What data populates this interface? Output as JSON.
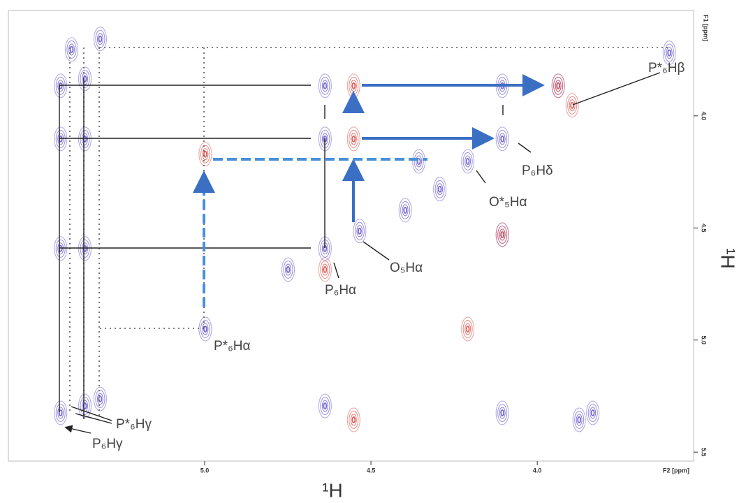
{
  "chart_data": {
    "type": "contour",
    "x_label": "¹H",
    "y_label": "¹H",
    "x_unit": "F2 [ppm]",
    "y_unit": "F1 [ppm]",
    "xlim": [
      5.59,
      3.53
    ],
    "ylim": [
      3.53,
      5.54
    ],
    "xticks": [
      {
        "value": 5,
        "label": "5.0"
      },
      {
        "value": 4.5,
        "label": "4.5"
      },
      {
        "value": 4,
        "label": "4.0"
      }
    ],
    "yticks": [
      {
        "value": 4,
        "label": "4.0"
      },
      {
        "value": 4.5,
        "label": "4.5"
      },
      {
        "value": 5,
        "label": "5.0"
      },
      {
        "value": 5.5,
        "label": "5.5"
      }
    ],
    "series": [
      {
        "color": "#6a5acd",
        "x": [
          5.433,
          5.433,
          5.433,
          5.433,
          5.36,
          5.36,
          5.36,
          5.36,
          5.314,
          5.314,
          5.4,
          4.998,
          4.749,
          4.638,
          4.638,
          4.638,
          4.638,
          4.534,
          4.105,
          4.105,
          4.105,
          3.937,
          3.833,
          3.874,
          3.603,
          4.356,
          4.293,
          4.397,
          4.209,
          4.105
        ],
        "y": [
          3.866,
          4.103,
          4.592,
          5.325,
          3.835,
          4.103,
          4.592,
          5.294,
          3.657,
          5.263,
          3.704,
          4.951,
          4.686,
          3.866,
          4.103,
          4.592,
          5.294,
          4.514,
          3.866,
          4.103,
          5.325,
          3.866,
          5.325,
          5.356,
          3.719,
          4.203,
          4.327,
          4.421,
          4.203,
          4.53
        ]
      },
      {
        "color": "#d9534f",
        "x": [
          4.552,
          4.552,
          4.998,
          4.552,
          4.209,
          4.105,
          3.937,
          3.895,
          4.638
        ],
        "y": [
          3.866,
          4.103,
          4.171,
          5.356,
          4.951,
          4.53,
          3.866,
          3.953,
          4.686
        ]
      }
    ],
    "annotations": [
      "P*₆Hβ",
      "P₆Hδ",
      "O*₅Hα",
      "O₅Hα",
      "P₆Hα",
      "P*₆Hα",
      "P*₆Hγ",
      "P₆Hγ"
    ]
  }
}
